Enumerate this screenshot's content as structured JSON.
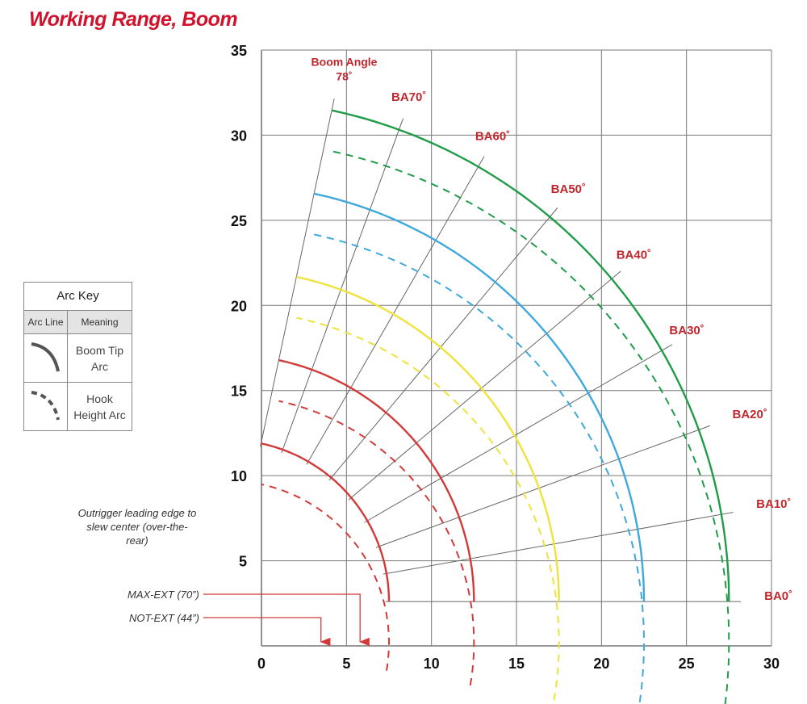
{
  "title": "Working Range, Boom",
  "arc_key": {
    "title": "Arc Key",
    "col_line": "Arc Line",
    "col_meaning": "Meaning",
    "rows": [
      {
        "meaning": "Boom Tip Arc",
        "style": "solid"
      },
      {
        "meaning": "Hook Height Arc",
        "style": "dashed"
      }
    ]
  },
  "outrigger_note": "Outrigger leading edge to slew center (over-the-rear)",
  "max_ext_label": "MAX-EXT (70”)",
  "not_ext_label": "NOT-EXT (44”)",
  "chart_data": {
    "type": "line",
    "title": "Working Range, Boom",
    "xlim": [
      0,
      30
    ],
    "ylim": [
      0,
      35
    ],
    "x_ticks": [
      "0",
      "5",
      "10",
      "15",
      "20",
      "25",
      "30"
    ],
    "y_ticks": [
      "5",
      "10",
      "15",
      "20",
      "25",
      "30",
      "35"
    ],
    "grid": true,
    "pivot": {
      "x": 7.5,
      "y": 2.6
    },
    "boom_angle_header": [
      "Boom Angle",
      "78˚"
    ],
    "boom_angle_lines": [
      {
        "label": "BA0˚",
        "angle": 0,
        "inner_radius": 0
      },
      {
        "label": "BA10˚",
        "angle": 10,
        "inner_radius": 0
      },
      {
        "label": "BA20˚",
        "angle": 20,
        "inner_radius": 0
      },
      {
        "label": "BA30˚",
        "angle": 30,
        "inner_radius": 0
      },
      {
        "label": "BA40˚",
        "angle": 40,
        "inner_radius": 4
      },
      {
        "label": "BA50˚",
        "angle": 50,
        "inner_radius": 4
      },
      {
        "label": "BA60˚",
        "angle": 60,
        "inner_radius": 4
      },
      {
        "label": "BA70˚",
        "angle": 70,
        "inner_radius": 4.5
      },
      {
        "label": "",
        "angle": 78,
        "inner_radius": 4.5
      }
    ],
    "series": [
      {
        "color": "#d23a3a",
        "boom_tip_radius": 9.0,
        "hook_height_radius": 9.0,
        "hook_drop": 2.4
      },
      {
        "color": "#d23a3a",
        "boom_tip_radius": 14.0,
        "hook_height_radius": 14.0,
        "hook_drop": 2.4
      },
      {
        "color": "#efe23a",
        "boom_tip_radius": 19.0,
        "hook_height_radius": 19.0,
        "hook_drop": 2.4
      },
      {
        "color": "#3fa8dc",
        "boom_tip_radius": 24.0,
        "hook_height_radius": 24.0,
        "hook_drop": 2.4
      },
      {
        "color": "#1f9c48",
        "boom_tip_radius": 29.0,
        "hook_height_radius": 29.0,
        "hook_drop": 2.4
      }
    ],
    "outrigger_positions": [
      {
        "name": "MAX-EXT (70”)",
        "x": 5.8
      },
      {
        "name": "NOT-EXT (44”)",
        "x": 3.5
      }
    ],
    "colors": {
      "labels": "#c0272d",
      "arrows": "#d23a3a",
      "grid": "#777777"
    }
  }
}
